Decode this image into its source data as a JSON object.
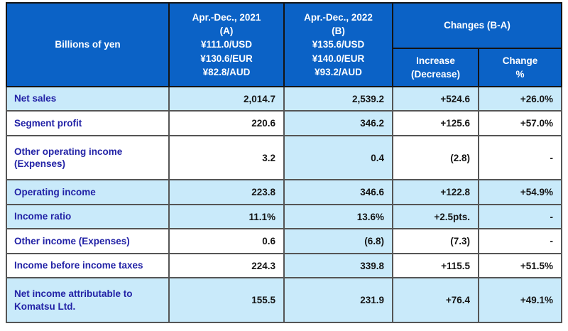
{
  "table": {
    "header": {
      "label": "Billions of yen",
      "col_a": "Apr.-Dec., 2021\n(A)\n¥111.0/USD\n¥130.6/EUR\n¥82.8/AUD",
      "col_b": "Apr.-Dec., 2022\n(B)\n¥135.6/USD\n¥140.0/EUR\n¥93.2/AUD",
      "changes": "Changes (B-A)",
      "increase": "Increase\n(Decrease)",
      "change_pct": "Change\n%"
    },
    "rows": [
      {
        "label": "Net sales",
        "a": "2,014.7",
        "b": "2,539.2",
        "inc": "+524.6",
        "chg": "+26.0%",
        "highlight": true
      },
      {
        "label": "Segment profit",
        "a": "220.6",
        "b": "346.2",
        "inc": "+125.6",
        "chg": "+57.0%",
        "highlight": false
      },
      {
        "label": "Other operating income (Expenses)",
        "a": "3.2",
        "b": "0.4",
        "inc": "(2.8)",
        "chg": "-",
        "highlight": false
      },
      {
        "label": "Operating income",
        "a": "223.8",
        "b": "346.6",
        "inc": "+122.8",
        "chg": "+54.9%",
        "highlight": true
      },
      {
        "label": "Income ratio",
        "a": "11.1%",
        "b": "13.6%",
        "inc": "+2.5pts.",
        "chg": "-",
        "highlight": true
      },
      {
        "label": "Other income (Expenses)",
        "a": "0.6",
        "b": "(6.8)",
        "inc": "(7.3)",
        "chg": "-",
        "highlight": false
      },
      {
        "label": "Income before income taxes",
        "a": "224.3",
        "b": "339.8",
        "inc": "+115.5",
        "chg": "+51.5%",
        "highlight": false
      },
      {
        "label": "Net income attributable to\nKomatsu Ltd.",
        "a": "155.5",
        "b": "231.9",
        "inc": "+76.4",
        "chg": "+49.1%",
        "highlight": true
      }
    ],
    "colors": {
      "header_bg": "#0b62c6",
      "highlight_bg": "#c9eafa",
      "label_text": "#2222a6",
      "value_text": "#141414",
      "grid_line": "#555555"
    }
  }
}
